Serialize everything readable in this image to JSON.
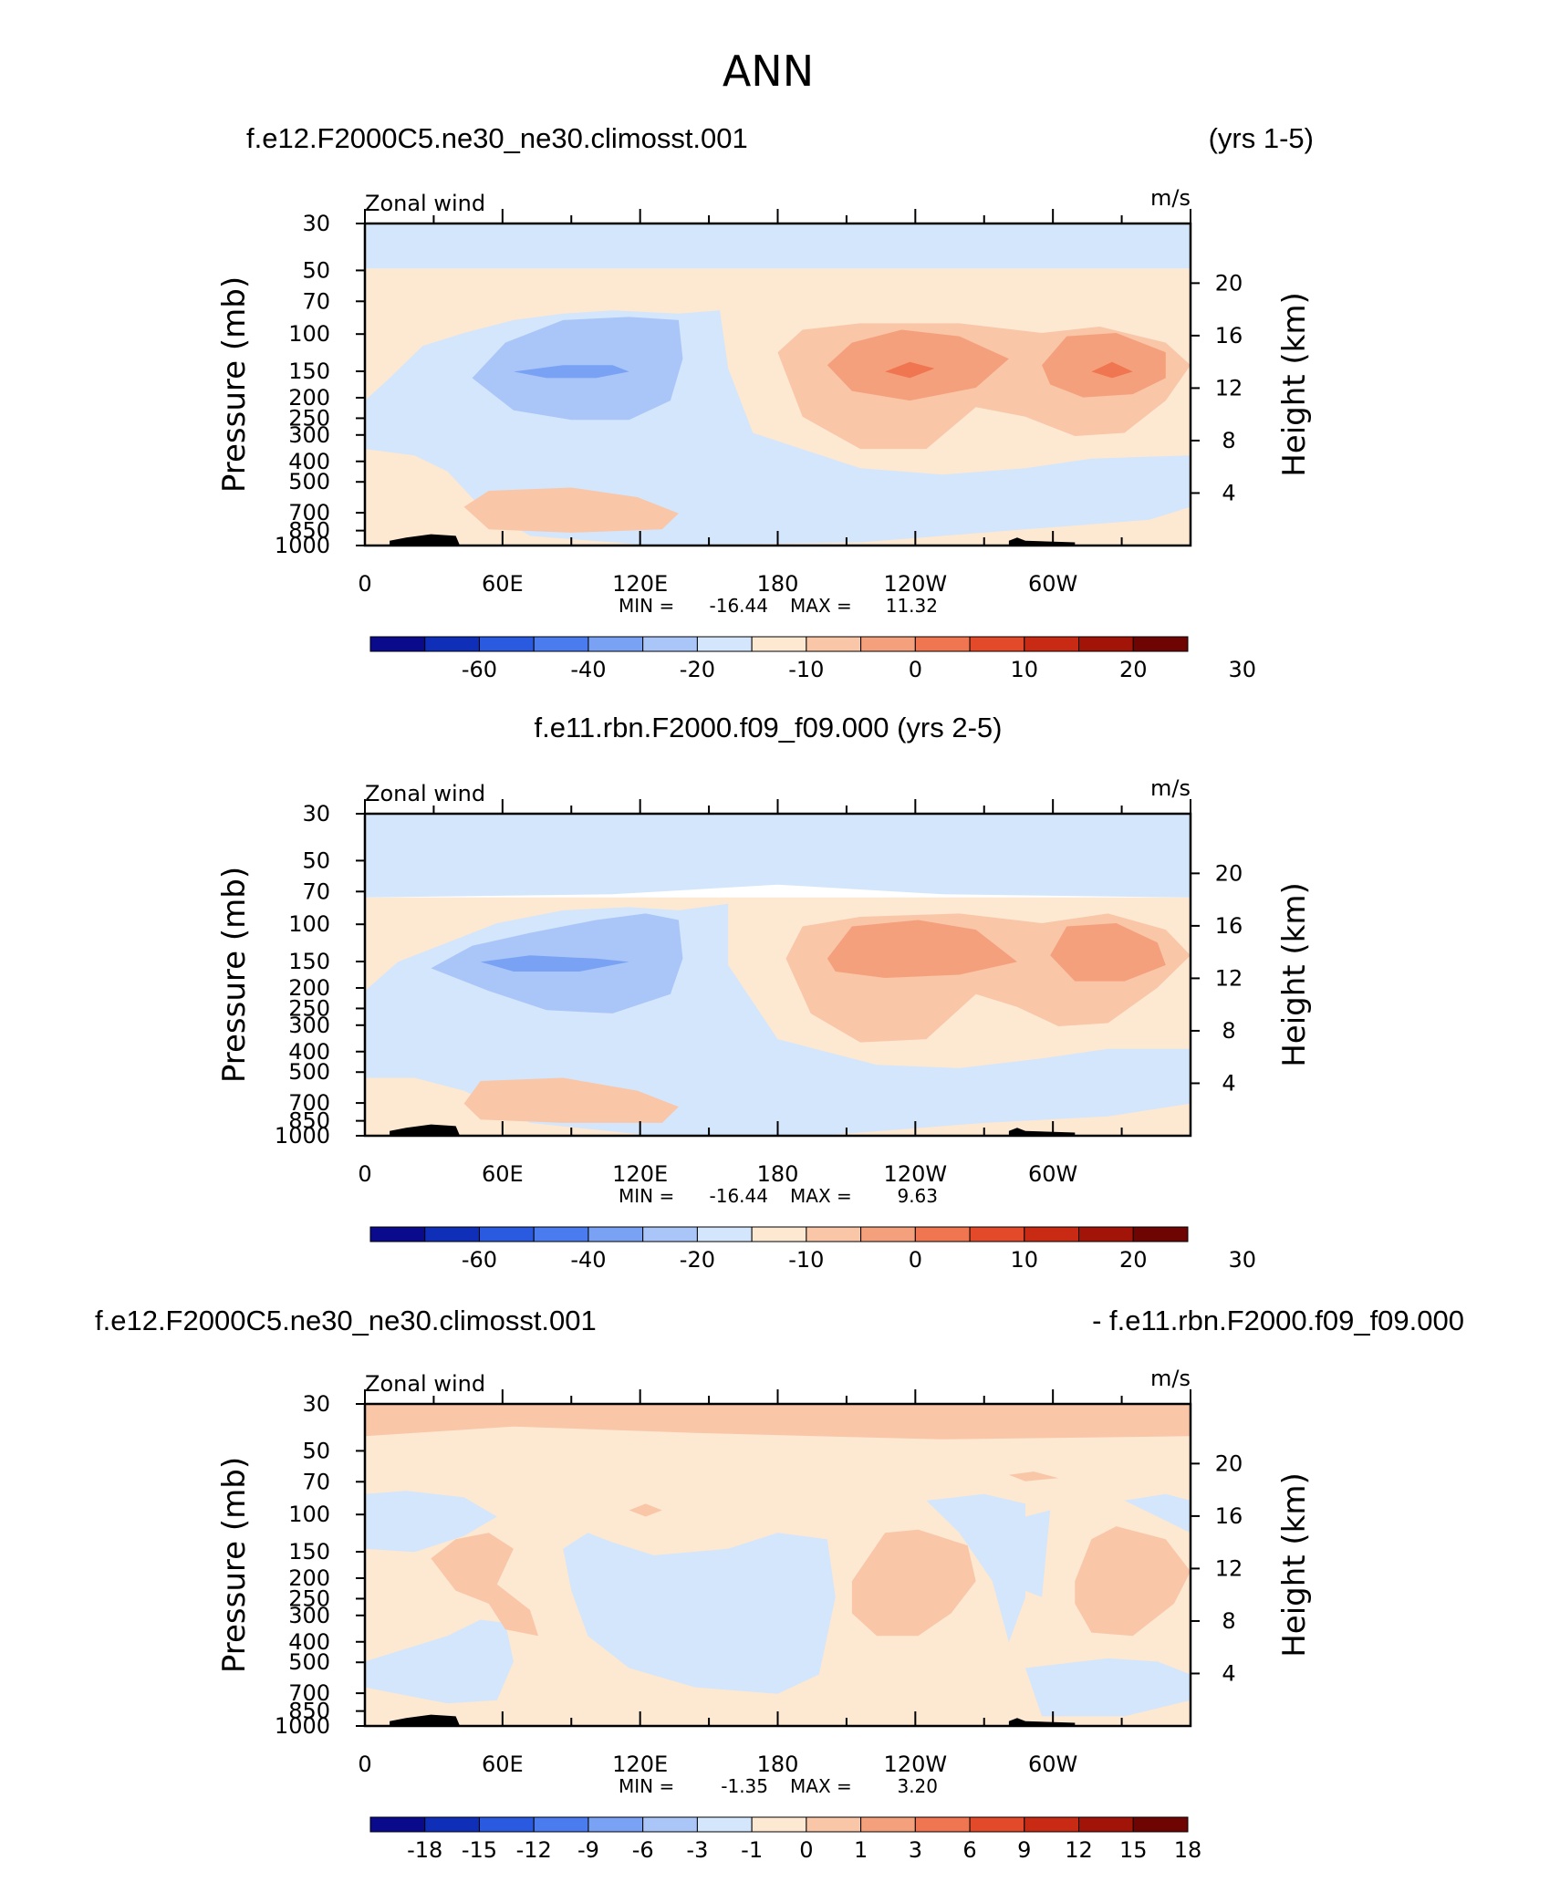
{
  "figure": {
    "title": "ANN"
  },
  "colors": {
    "frame": "#000000",
    "topography": "#000000"
  },
  "chart_data": [
    {
      "type": "contour",
      "run_label_left": "f.e12.F2000C5.ne30_ne30.climosst.001",
      "run_label_right": "(yrs 1-5)",
      "variable": "Zonal wind",
      "units": "m/s",
      "ylabel": "Pressure  (mb)",
      "ylabel_right": "Height  (km)",
      "pressure_ticks": [
        30,
        50,
        70,
        100,
        150,
        200,
        250,
        300,
        400,
        500,
        700,
        850,
        1000
      ],
      "height_ticks": [
        4,
        8,
        12,
        16,
        20
      ],
      "lon_ticks": [
        "0",
        "60E",
        "120E",
        "180",
        "120W",
        "60W"
      ],
      "min_label": "MIN =",
      "min_value": "-16.44",
      "max_label": "MAX =",
      "max_value": "11.32",
      "colorbar_labels": [
        "-60",
        "-40",
        "-20",
        "-10",
        "0",
        "10",
        "20",
        "30"
      ],
      "colorbar_colors": [
        "#0a0a8c",
        "#0f2fb8",
        "#2a5ae0",
        "#4a7cf0",
        "#7aa2f4",
        "#aac6f8",
        "#d4e6fb",
        "#fde8d2",
        "#f9c6a8",
        "#f5a07c",
        "#ef7650",
        "#e24a2a",
        "#c82a14",
        "#a21408",
        "#6e0502"
      ]
    },
    {
      "type": "contour",
      "run_label_left": "f.e11.rbn.F2000.f09_f09.000 (yrs 2-5)",
      "run_label_right": "",
      "variable": "Zonal wind",
      "units": "m/s",
      "ylabel": "Pressure  (mb)",
      "ylabel_right": "Height  (km)",
      "pressure_ticks": [
        30,
        50,
        70,
        100,
        150,
        200,
        250,
        300,
        400,
        500,
        700,
        850,
        1000
      ],
      "height_ticks": [
        4,
        8,
        12,
        16,
        20
      ],
      "lon_ticks": [
        "0",
        "60E",
        "120E",
        "180",
        "120W",
        "60W"
      ],
      "min_label": "MIN =",
      "min_value": "-16.44",
      "max_label": "MAX =",
      "max_value": "9.63",
      "colorbar_labels": [
        "-60",
        "-40",
        "-20",
        "-10",
        "0",
        "10",
        "20",
        "30"
      ],
      "colorbar_colors": [
        "#0a0a8c",
        "#0f2fb8",
        "#2a5ae0",
        "#4a7cf0",
        "#7aa2f4",
        "#aac6f8",
        "#d4e6fb",
        "#fde8d2",
        "#f9c6a8",
        "#f5a07c",
        "#ef7650",
        "#e24a2a",
        "#c82a14",
        "#a21408",
        "#6e0502"
      ]
    },
    {
      "type": "contour",
      "run_label_left": "f.e12.F2000C5.ne30_ne30.climosst.001",
      "run_label_right": "- f.e11.rbn.F2000.f09_f09.000",
      "variable": "Zonal wind",
      "units": "m/s",
      "ylabel": "Pressure  (mb)",
      "ylabel_right": "Height  (km)",
      "pressure_ticks": [
        30,
        50,
        70,
        100,
        150,
        200,
        250,
        300,
        400,
        500,
        700,
        850,
        1000
      ],
      "height_ticks": [
        4,
        8,
        12,
        16,
        20
      ],
      "lon_ticks": [
        "0",
        "60E",
        "120E",
        "180",
        "120W",
        "60W"
      ],
      "min_label": "MIN =",
      "min_value": "-1.35",
      "max_label": "MAX =",
      "max_value": "3.20",
      "colorbar_labels": [
        "-18",
        "-15",
        "-12",
        "-9",
        "-6",
        "-3",
        "-1",
        "0",
        "1",
        "3",
        "6",
        "9",
        "12",
        "15",
        "18"
      ],
      "colorbar_colors": [
        "#0a0a8c",
        "#0f2fb8",
        "#2a5ae0",
        "#4a7cf0",
        "#7aa2f4",
        "#aac6f8",
        "#d4e6fb",
        "#fde8d2",
        "#f9c6a8",
        "#f5a07c",
        "#ef7650",
        "#e24a2a",
        "#c82a14",
        "#a21408",
        "#6e0502"
      ]
    }
  ]
}
